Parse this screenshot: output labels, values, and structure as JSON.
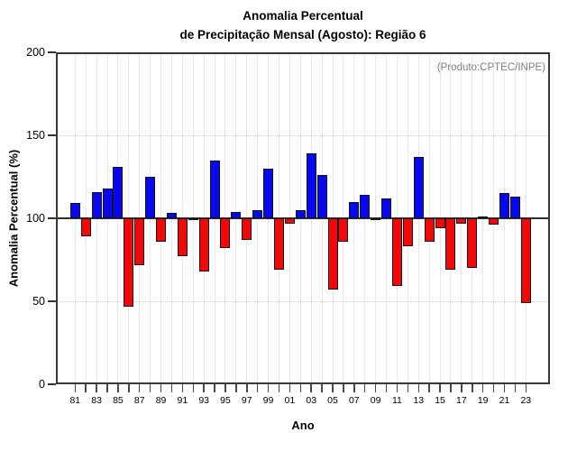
{
  "title": {
    "line1": "Anomalia Percentual",
    "line2": "de Precipitação Mensal (Agosto): Região 6"
  },
  "annotation": "(Produto:CPTEC/INPE)",
  "axes": {
    "y_label": "Anomalia Percentual (%)",
    "x_label": "Ano",
    "y_ticks": [
      0,
      50,
      100,
      150,
      200
    ],
    "x_tick_labels": [
      "81",
      "83",
      "85",
      "87",
      "89",
      "91",
      "93",
      "95",
      "97",
      "99",
      "01",
      "03",
      "05",
      "07",
      "09",
      "11",
      "13",
      "15",
      "17",
      "19",
      "21",
      "23"
    ]
  },
  "colors": {
    "bar_above": "#0808f0",
    "bar_below": "#f20808",
    "bar_border": "#151515",
    "baseline": "#2e2e2e",
    "frame": "#383838",
    "grid": "#d6d6d6",
    "annotation_text": "#7f7f7f"
  },
  "chart_data": {
    "type": "bar",
    "title": "Anomalia Percentual de Precipitação Mensal (Agosto): Região 6",
    "xlabel": "Ano",
    "ylabel": "Anomalia Percentual (%)",
    "ylim": [
      0,
      200
    ],
    "baseline": 100,
    "grid": "dotted vertical line at every year; dotted horizontal at 50 and 150; solid line at 100",
    "legend": "blue = above 100%, red = below 100%",
    "x": [
      1981,
      1982,
      1983,
      1984,
      1985,
      1986,
      1987,
      1988,
      1989,
      1990,
      1991,
      1992,
      1993,
      1994,
      1995,
      1996,
      1997,
      1998,
      1999,
      2000,
      2001,
      2002,
      2003,
      2004,
      2005,
      2006,
      2007,
      2008,
      2009,
      2010,
      2011,
      2012,
      2013,
      2014,
      2015,
      2016,
      2017,
      2018,
      2019,
      2020,
      2021,
      2022,
      2023
    ],
    "values": [
      109,
      89,
      116,
      118,
      131,
      47,
      72,
      125,
      86,
      103,
      77,
      99,
      68,
      135,
      82,
      104,
      87,
      105,
      130,
      69,
      97,
      105,
      139,
      126,
      57,
      86,
      110,
      114,
      99,
      112,
      59,
      83,
      137,
      86,
      94,
      69,
      97,
      70,
      101,
      96,
      115,
      113,
      49
    ]
  }
}
